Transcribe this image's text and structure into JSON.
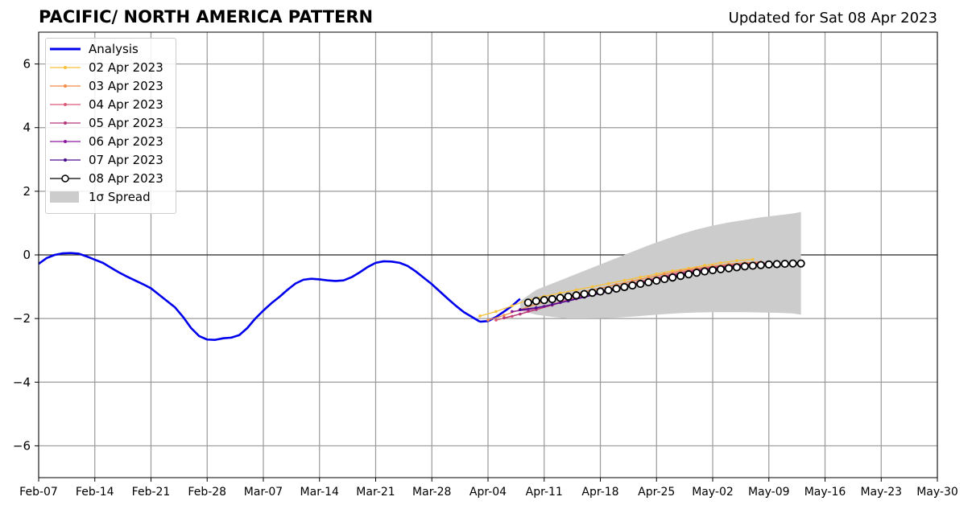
{
  "title": "PACIFIC/ NORTH AMERICA PATTERN",
  "subtitle": "Updated for Sat 08 Apr 2023",
  "chart_data": {
    "type": "line",
    "ylim": [
      -7,
      7
    ],
    "yticks": [
      6,
      4,
      2,
      0,
      -2,
      -4,
      -6
    ],
    "ytick_labels": [
      "6",
      "4",
      "2",
      "0",
      "−2",
      "−4",
      "−6"
    ],
    "x_axis": "days since Feb-07",
    "xlim": [
      0,
      112
    ],
    "xticks": [
      0,
      7,
      14,
      21,
      28,
      35,
      42,
      49,
      56,
      63,
      70,
      77,
      84,
      91,
      98,
      105,
      112
    ],
    "xtick_labels": [
      "Feb-07",
      "Feb-14",
      "Feb-21",
      "Feb-28",
      "Mar-07",
      "Mar-14",
      "Mar-21",
      "Mar-28",
      "Apr-04",
      "Apr-11",
      "Apr-18",
      "Apr-25",
      "May-02",
      "May-09",
      "May-16",
      "May-23",
      "May-30"
    ],
    "grid": true,
    "zero_line": true,
    "legend_position": "top-left",
    "series": [
      {
        "name": "Analysis",
        "color": "#0000ee",
        "x": [
          0,
          1,
          2,
          3,
          4,
          5,
          6,
          7,
          8,
          9,
          10,
          11,
          12,
          13,
          14,
          15,
          16,
          17,
          18,
          19,
          20,
          21,
          22,
          23,
          24,
          25,
          26,
          27,
          28,
          29,
          30,
          31,
          32,
          33,
          34,
          35,
          36,
          37,
          38,
          39,
          40,
          41,
          42,
          43,
          44,
          45,
          46,
          47,
          48,
          49,
          50,
          51,
          52,
          53,
          54,
          55
        ],
        "y": [
          -0.28,
          -0.1,
          0.0,
          0.05,
          0.06,
          0.04,
          -0.05,
          -0.15,
          -0.25,
          -0.4,
          -0.55,
          -0.68,
          -0.8,
          -0.92,
          -1.05,
          -1.25,
          -1.45,
          -1.65,
          -1.95,
          -2.3,
          -2.55,
          -2.66,
          -2.67,
          -2.62,
          -2.6,
          -2.52,
          -2.3,
          -2.0,
          -1.75,
          -1.52,
          -1.32,
          -1.1,
          -0.9,
          -0.78,
          -0.75,
          -0.77,
          -0.8,
          -0.82,
          -0.8,
          -0.7,
          -0.55,
          -0.38,
          -0.25,
          -0.2,
          -0.21,
          -0.25,
          -0.35,
          -0.52,
          -0.72,
          -0.92,
          -1.15,
          -1.38,
          -1.6,
          -1.8,
          -1.95,
          -2.1
        ]
      },
      {
        "name": "Analysis (recent)",
        "color": "#0000ee",
        "x": [
          55,
          56,
          57,
          58,
          59,
          60
        ],
        "y": [
          -2.1,
          -2.08,
          -1.95,
          -1.78,
          -1.6,
          -1.38
        ]
      },
      {
        "name": "02 Apr 2023",
        "color": "#f7c13a",
        "x": [
          55,
          57,
          59,
          61,
          63,
          65,
          67,
          69,
          71,
          73,
          75,
          77,
          79,
          81,
          83,
          85,
          87,
          89
        ],
        "y": [
          -1.92,
          -1.78,
          -1.6,
          -1.42,
          -1.3,
          -1.2,
          -1.1,
          -1.0,
          -0.9,
          -0.8,
          -0.7,
          -0.6,
          -0.5,
          -0.42,
          -0.33,
          -0.25,
          -0.18,
          -0.14
        ]
      },
      {
        "name": "03 Apr 2023",
        "color": "#f48b47",
        "x": [
          56,
          58,
          60,
          62,
          64,
          66,
          68,
          70,
          72,
          74,
          76,
          78,
          80,
          82,
          84,
          86,
          88,
          90
        ],
        "y": [
          -2.05,
          -1.9,
          -1.72,
          -1.55,
          -1.4,
          -1.28,
          -1.15,
          -1.05,
          -0.93,
          -0.82,
          -0.71,
          -0.6,
          -0.5,
          -0.42,
          -0.35,
          -0.29,
          -0.25,
          -0.22
        ]
      },
      {
        "name": "04 Apr 2023",
        "color": "#de5a79",
        "x": [
          57,
          59,
          61,
          63,
          65,
          67,
          69,
          71,
          73,
          75,
          77,
          79,
          81,
          83,
          85,
          87,
          89,
          91
        ],
        "y": [
          -2.05,
          -1.93,
          -1.78,
          -1.62,
          -1.48,
          -1.33,
          -1.2,
          -1.08,
          -0.95,
          -0.83,
          -0.72,
          -0.6,
          -0.5,
          -0.42,
          -0.35,
          -0.3,
          -0.27,
          -0.25
        ]
      },
      {
        "name": "05 Apr 2023",
        "color": "#b5367a",
        "x": [
          58,
          60,
          62,
          64,
          66,
          68,
          70,
          72,
          74,
          76,
          78,
          80,
          82,
          84,
          86,
          88,
          90,
          92
        ],
        "y": [
          -1.98,
          -1.86,
          -1.72,
          -1.58,
          -1.43,
          -1.3,
          -1.17,
          -1.05,
          -0.93,
          -0.81,
          -0.69,
          -0.58,
          -0.48,
          -0.4,
          -0.34,
          -0.3,
          -0.27,
          -0.26
        ]
      },
      {
        "name": "06 Apr 2023",
        "color": "#8b1a9c",
        "x": [
          59,
          61,
          63,
          65,
          67,
          69,
          71,
          73,
          75,
          77,
          79,
          81,
          83,
          85,
          87,
          89,
          91,
          93
        ],
        "y": [
          -1.78,
          -1.72,
          -1.62,
          -1.5,
          -1.38,
          -1.25,
          -1.12,
          -1.0,
          -0.88,
          -0.77,
          -0.66,
          -0.56,
          -0.47,
          -0.4,
          -0.34,
          -0.3,
          -0.28,
          -0.27
        ]
      },
      {
        "name": "07 Apr 2023",
        "color": "#4a0c8f",
        "x": [
          60,
          62,
          64,
          66,
          68,
          70,
          72,
          74,
          76,
          78,
          80,
          82,
          84,
          86,
          88,
          90,
          92,
          94
        ],
        "y": [
          -1.72,
          -1.66,
          -1.56,
          -1.45,
          -1.33,
          -1.21,
          -1.09,
          -0.97,
          -0.86,
          -0.75,
          -0.64,
          -0.54,
          -0.46,
          -0.39,
          -0.34,
          -0.3,
          -0.28,
          -0.27
        ]
      },
      {
        "name": "08 Apr 2023",
        "color": "#000000",
        "markers": "open-circle",
        "x": [
          61,
          62,
          63,
          64,
          65,
          66,
          67,
          68,
          69,
          70,
          71,
          72,
          73,
          74,
          75,
          76,
          77,
          78,
          79,
          80,
          81,
          82,
          83,
          84,
          85,
          86,
          87,
          88,
          89,
          90,
          91,
          92,
          93,
          94,
          95
        ],
        "y": [
          -1.5,
          -1.45,
          -1.42,
          -1.39,
          -1.35,
          -1.31,
          -1.27,
          -1.23,
          -1.19,
          -1.15,
          -1.11,
          -1.06,
          -1.01,
          -0.96,
          -0.91,
          -0.86,
          -0.81,
          -0.76,
          -0.71,
          -0.66,
          -0.61,
          -0.56,
          -0.52,
          -0.48,
          -0.45,
          -0.42,
          -0.39,
          -0.36,
          -0.34,
          -0.32,
          -0.3,
          -0.29,
          -0.28,
          -0.27,
          -0.27
        ]
      }
    ],
    "spread": {
      "name": "1σ Spread",
      "color": "#cccccc",
      "x": [
        60,
        62,
        64,
        66,
        68,
        70,
        72,
        74,
        76,
        78,
        80,
        82,
        84,
        86,
        88,
        90,
        92,
        94,
        95
      ],
      "upper": [
        -1.45,
        -1.1,
        -0.9,
        -0.7,
        -0.5,
        -0.3,
        -0.1,
        0.1,
        0.3,
        0.48,
        0.65,
        0.8,
        0.92,
        1.02,
        1.1,
        1.18,
        1.24,
        1.3,
        1.35
      ],
      "lower": [
        -1.75,
        -1.88,
        -1.95,
        -2.0,
        -2.0,
        -1.99,
        -1.97,
        -1.94,
        -1.9,
        -1.86,
        -1.83,
        -1.81,
        -1.8,
        -1.8,
        -1.8,
        -1.81,
        -1.82,
        -1.84,
        -1.88
      ]
    }
  },
  "legend": [
    {
      "label": "Analysis",
      "color": "#0000ee",
      "style": "thick"
    },
    {
      "label": "02 Apr 2023",
      "color": "#f7c13a",
      "style": "thin"
    },
    {
      "label": "03 Apr 2023",
      "color": "#f48b47",
      "style": "thin"
    },
    {
      "label": "04 Apr 2023",
      "color": "#de5a79",
      "style": "thin"
    },
    {
      "label": "05 Apr 2023",
      "color": "#b5367a",
      "style": "thin"
    },
    {
      "label": "06 Apr 2023",
      "color": "#8b1a9c",
      "style": "thin"
    },
    {
      "label": "07 Apr 2023",
      "color": "#4a0c8f",
      "style": "thin"
    },
    {
      "label": "08 Apr 2023",
      "color": "#000000",
      "style": "circle"
    },
    {
      "label": "1σ Spread",
      "color": "#cccccc",
      "style": "patch"
    }
  ]
}
